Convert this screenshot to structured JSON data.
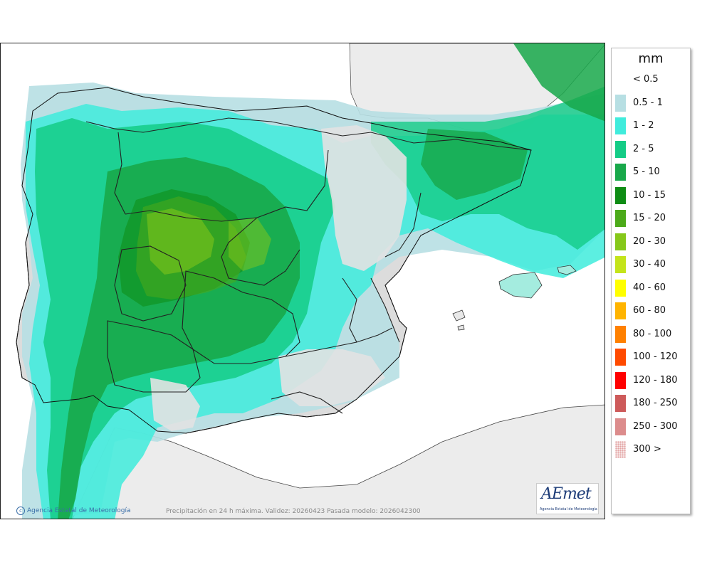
{
  "map": {
    "credit": "Agencia Estatal de Meteorología",
    "caption": "Precipitación en 24 h máxima. Validez: 20260423 Pasada modelo: 2026042300",
    "logo": {
      "word": "AEmet",
      "subtitle": "Agencia Estatal de Meteorología"
    }
  },
  "legend": {
    "unit": "mm",
    "items": [
      {
        "label": "< 0.5",
        "color": "#ffffff"
      },
      {
        "label": "0.5 - 1",
        "color": "#b7dfe3"
      },
      {
        "label": "1 - 2",
        "color": "#40ecdc"
      },
      {
        "label": "2 - 5",
        "color": "#14cc86"
      },
      {
        "label": "5 - 10",
        "color": "#18a84a"
      },
      {
        "label": "10 - 15",
        "color": "#0e8c14"
      },
      {
        "label": "15 - 20",
        "color": "#4caa1a"
      },
      {
        "label": "20 - 30",
        "color": "#86c81a"
      },
      {
        "label": "30 - 40",
        "color": "#c4e41a"
      },
      {
        "label": "40 - 60",
        "color": "#ffff00"
      },
      {
        "label": "60 - 80",
        "color": "#ffb400"
      },
      {
        "label": "80 - 100",
        "color": "#ff8000"
      },
      {
        "label": "100 - 120",
        "color": "#ff4a00"
      },
      {
        "label": "120 - 180",
        "color": "#ff0000"
      },
      {
        "label": "180 - 250",
        "color": "#cd5a5a"
      },
      {
        "label": "250 - 300",
        "color": "#dc8c8c"
      },
      {
        "label": "300 >",
        "color": "#f2d6d6",
        "pattern": true
      }
    ]
  }
}
